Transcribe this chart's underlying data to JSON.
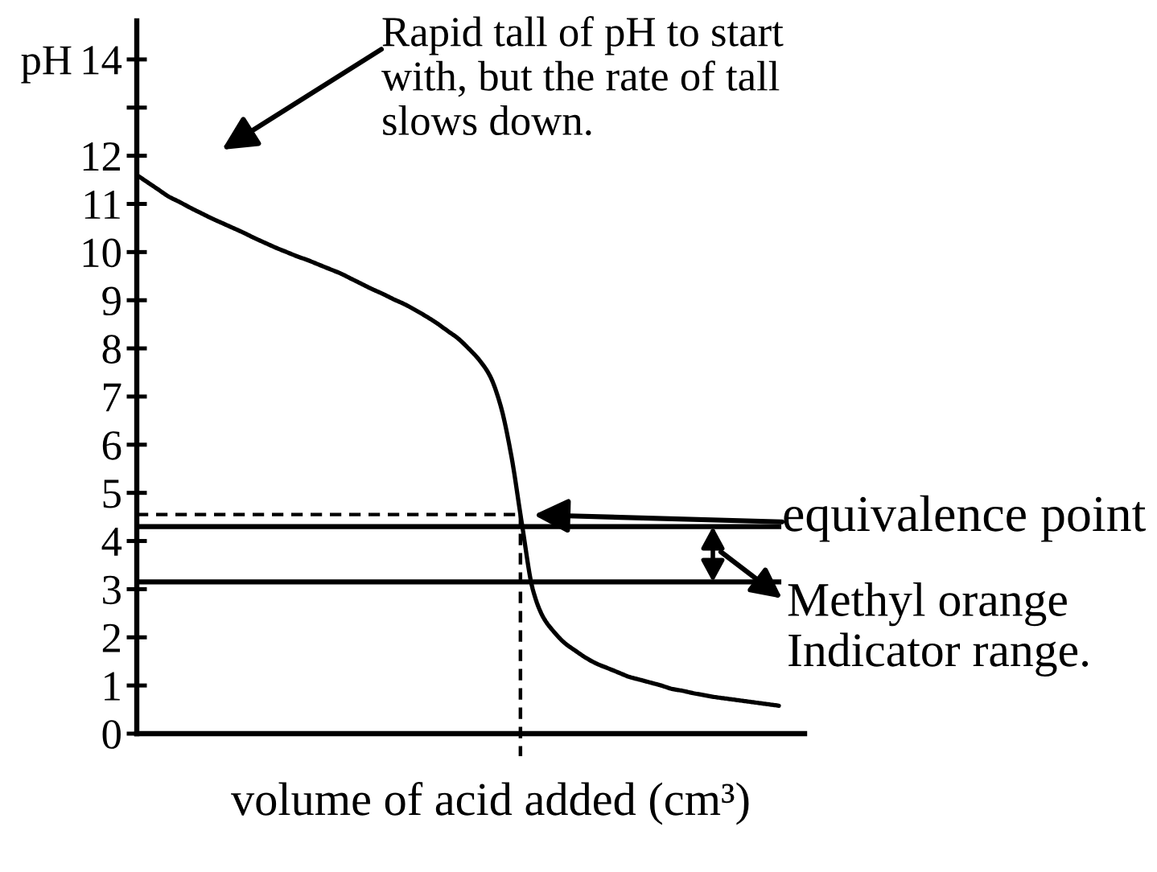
{
  "chart_data": {
    "type": "line",
    "xlabel": "volume of acid added (cm³)",
    "ylabel": "pH",
    "categories": [
      null,
      null,
      null,
      null,
      null,
      null,
      null,
      null,
      null,
      null,
      null,
      null,
      null,
      null,
      null,
      null,
      null,
      null,
      null,
      null,
      null,
      null,
      null,
      null,
      null,
      null,
      null,
      null,
      null,
      null,
      null,
      null,
      null,
      null,
      null,
      null,
      null,
      null,
      null,
      null,
      null,
      null,
      null,
      null,
      null,
      null,
      null,
      null,
      null,
      null,
      null,
      null,
      null,
      null,
      null,
      null,
      null,
      null,
      null,
      null,
      null
    ],
    "series": [
      {
        "color": "#000000",
        "values": [
          11.6,
          11.45,
          11.3,
          11.15,
          11.04,
          10.92,
          10.81,
          10.7,
          10.6,
          10.5,
          10.4,
          10.29,
          10.19,
          10.09,
          10.0,
          9.91,
          9.83,
          9.74,
          9.65,
          9.56,
          9.45,
          9.34,
          9.23,
          9.13,
          9.02,
          8.92,
          8.8,
          8.67,
          8.53,
          8.37,
          8.21,
          8.0,
          7.76,
          7.43,
          6.81,
          5.77,
          4.34,
          3.0,
          2.41,
          2.11,
          1.88,
          1.72,
          1.57,
          1.45,
          1.36,
          1.27,
          1.18,
          1.12,
          1.06,
          1.0,
          0.93,
          0.89,
          0.84,
          0.8,
          0.76,
          0.73,
          0.7,
          0.67,
          0.64,
          0.61,
          0.58
        ]
      }
    ],
    "ylim": [
      0,
      14.8
    ],
    "yticks": [
      0,
      1,
      2,
      3,
      4,
      5,
      6,
      7,
      8,
      9,
      10,
      11,
      12,
      {
        "value": 13,
        "label": null
      },
      14
    ],
    "tick_labels": "y",
    "ref_lines": [
      {
        "axis": "y",
        "value": 4.55,
        "line_style": "dashed"
      },
      {
        "axis": "y",
        "value": 4.3
      },
      {
        "axis": "y",
        "value": 3.15
      }
    ],
    "annotations": [
      "Rapid tall of pH to start\nwith, but the rate of tall\nslows down.",
      "equivalence point",
      "Methyl orange\nIndicator range."
    ]
  }
}
